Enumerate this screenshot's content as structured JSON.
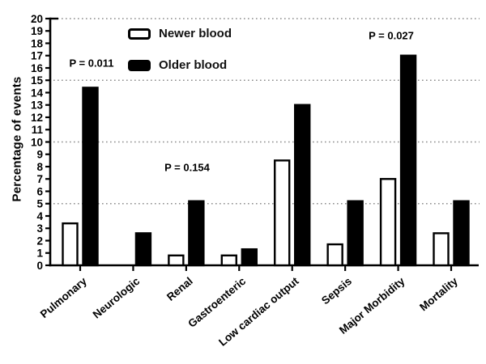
{
  "figure": {
    "background": "#ffffff",
    "ink_color": "#000000",
    "grid_color": "#8c8c8c"
  },
  "chart_data": {
    "type": "bar",
    "title": "",
    "xlabel": "",
    "ylabel": "Percentage of events",
    "ylim": [
      0,
      20
    ],
    "ytick_step": 1,
    "ytick_labels": [
      "0",
      "1",
      "2",
      "3",
      "4",
      "5",
      "6",
      "7",
      "8",
      "9",
      "10",
      "11",
      "12",
      "13",
      "14",
      "15",
      "16",
      "17",
      "18",
      "19",
      "20"
    ],
    "gridlines_at": [
      5,
      10,
      15,
      20
    ],
    "grid_style": "dotted horizontal",
    "legend_position": "top-left inside plot",
    "categories": [
      "Pulmonary",
      "Neurologic",
      "Renal",
      "Gastroenteric",
      "Low cardiac output",
      "Sepsis",
      "Major Morbidity",
      "Mortality"
    ],
    "series": [
      {
        "name": "Newer blood",
        "fill": "#ffffff",
        "values": [
          3.4,
          0,
          0.8,
          0.8,
          8.5,
          1.7,
          7.0,
          2.6
        ]
      },
      {
        "name": "Older blood",
        "fill": "#000000",
        "values": [
          14.4,
          2.6,
          5.2,
          1.3,
          13.0,
          5.2,
          17.0,
          5.2
        ]
      }
    ],
    "annotations": [
      {
        "text": "P = 0.011",
        "near_category": "Pulmonary"
      },
      {
        "text": "P = 0.154",
        "near_category": "Renal"
      },
      {
        "text": "P = 0.027",
        "near_category": "Major Morbidity"
      }
    ]
  }
}
